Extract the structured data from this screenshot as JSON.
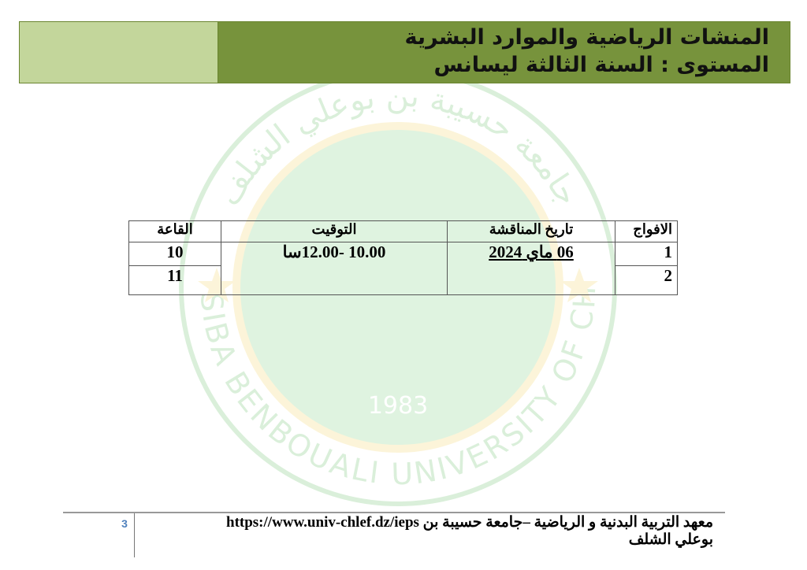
{
  "watermark": {
    "latin": "HASSIBA BENBOUALI UNIVERSITY OF CHLEF",
    "arabic": "جامعة حسيبة بن بوعلي الشلف",
    "year": "1983",
    "colors": {
      "green": "#2e9b3a",
      "yellow": "#f2cf3a"
    }
  },
  "header": {
    "line1": "المنشات الرياضية والموارد البشرية",
    "line2": "المستوى : السنة الثالثة ليسانس",
    "colors": {
      "dark": "#77933c",
      "light": "#c3d69b"
    }
  },
  "table": {
    "headers": [
      "الافواج",
      "تاريخ المناقشة",
      "التوقيت",
      "القاعة"
    ],
    "date": "06  ماي  2024",
    "time": "10.00 -12.00سا",
    "rows": [
      {
        "group": "1",
        "room": "10"
      },
      {
        "group": "2",
        "room": "11"
      }
    ]
  },
  "footer": {
    "page": "3",
    "line1": "معهد التربية البدنية و الرياضية –جامعة حسيبة بن https://www.univ-chlef.dz/ieps",
    "line2": "بوعلي الشلف"
  }
}
